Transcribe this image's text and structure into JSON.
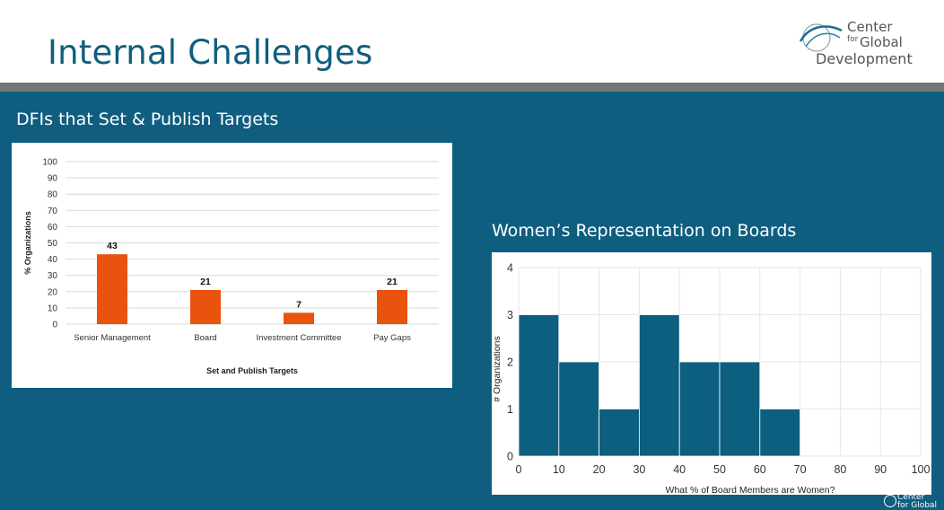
{
  "slide": {
    "title": "Internal Challenges",
    "logo": {
      "line1": "Center",
      "line2": "for",
      "line3": "Global",
      "line4": "Development"
    },
    "footer_logo": {
      "line1": "Center",
      "line2": "for Global"
    }
  },
  "colors": {
    "header_text": "#0f5e7e",
    "band": "#0f5e80",
    "divider": "#757575",
    "bar": "#e8530e",
    "hist": "#0d5f80"
  },
  "chart_data": [
    {
      "type": "bar",
      "title": "DFIs that Set & Publish Targets",
      "categories": [
        "Senior Management",
        "Board",
        "Investment Committee",
        "Pay Gaps"
      ],
      "values": [
        43,
        21,
        7,
        21
      ],
      "data_labels": [
        "43",
        "21",
        "7",
        "21"
      ],
      "xlabel": "Set and Publish Targets",
      "ylabel": "% Organizations",
      "ylim": [
        0,
        100
      ],
      "yticks": [
        "0",
        "10",
        "20",
        "30",
        "40",
        "50",
        "60",
        "70",
        "80",
        "90",
        "100"
      ],
      "grid": true
    },
    {
      "type": "bar",
      "title": "Women’s Representation on Boards",
      "bins": [
        [
          0,
          10
        ],
        [
          10,
          20
        ],
        [
          20,
          30
        ],
        [
          30,
          40
        ],
        [
          40,
          50
        ],
        [
          50,
          60
        ],
        [
          60,
          70
        ]
      ],
      "values": [
        3,
        2,
        1,
        3,
        2,
        2,
        1
      ],
      "xticks": [
        "0",
        "10",
        "20",
        "30",
        "40",
        "50",
        "60",
        "70",
        "80",
        "90",
        "100"
      ],
      "yticks": [
        "0",
        "1",
        "2",
        "3",
        "4"
      ],
      "xlim": [
        0,
        100
      ],
      "ylim": [
        0,
        4
      ],
      "xlabel": "What % of Board Members are Women?",
      "ylabel": "# Organizations",
      "grid": true
    }
  ]
}
